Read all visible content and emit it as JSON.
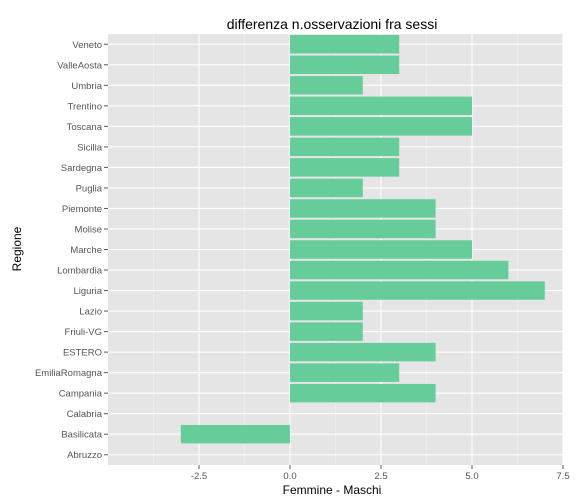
{
  "chart_data": {
    "type": "bar",
    "orientation": "horizontal",
    "title": "differenza n.osservazioni fra sessi",
    "xlabel": "Femmine - Maschi",
    "ylabel": "Regione",
    "categories": [
      "Abruzzo",
      "Basilicata",
      "Calabria",
      "Campania",
      "EmiliaRomagna",
      "ESTERO",
      "Friuli-VG",
      "Lazio",
      "Liguria",
      "Lombardia",
      "Marche",
      "Molise",
      "Piemonte",
      "Puglia",
      "Sardegna",
      "Sicilia",
      "Toscana",
      "Trentino",
      "Umbria",
      "ValleAosta",
      "Veneto"
    ],
    "values": [
      0,
      -3,
      0,
      4,
      3,
      4,
      2,
      2,
      7,
      6,
      5,
      4,
      4,
      2,
      3,
      3,
      5,
      5,
      2,
      3,
      3
    ],
    "xlim": [
      -5,
      7.5
    ],
    "xticks": [
      -2.5,
      0,
      2.5,
      5,
      7.5
    ],
    "xtick_labels": [
      "-2.5",
      "0.0",
      "2.5",
      "5.0",
      "7.5"
    ],
    "grid": true,
    "colors": {
      "bar": "#66CC99",
      "panel": "#E5E5E5",
      "grid_major": "#FFFFFF",
      "grid_minor": "#F2F2F2"
    }
  }
}
